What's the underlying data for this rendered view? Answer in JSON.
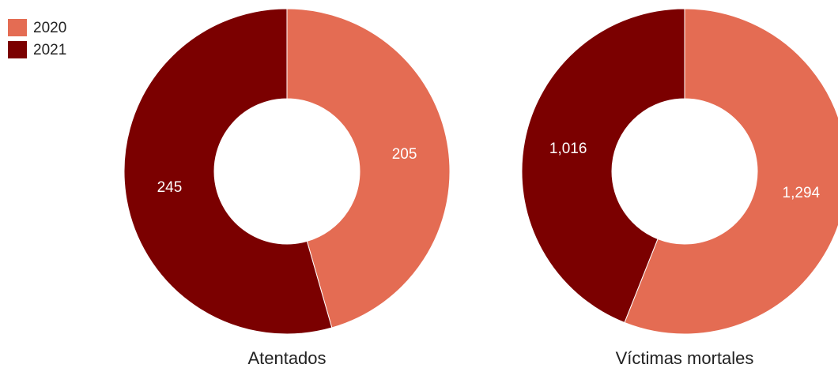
{
  "legend": {
    "labels": [
      "2020",
      "2021"
    ],
    "colors": [
      "#e46c53",
      "#7b0000"
    ]
  },
  "chart_data": [
    {
      "type": "pie",
      "title": "Atentados",
      "values": [
        205,
        245
      ]
    },
    {
      "type": "pie",
      "title": "Víctimas mortales",
      "values": [
        1294,
        1016
      ],
      "value_labels": [
        "1,294",
        "1,016"
      ]
    }
  ]
}
